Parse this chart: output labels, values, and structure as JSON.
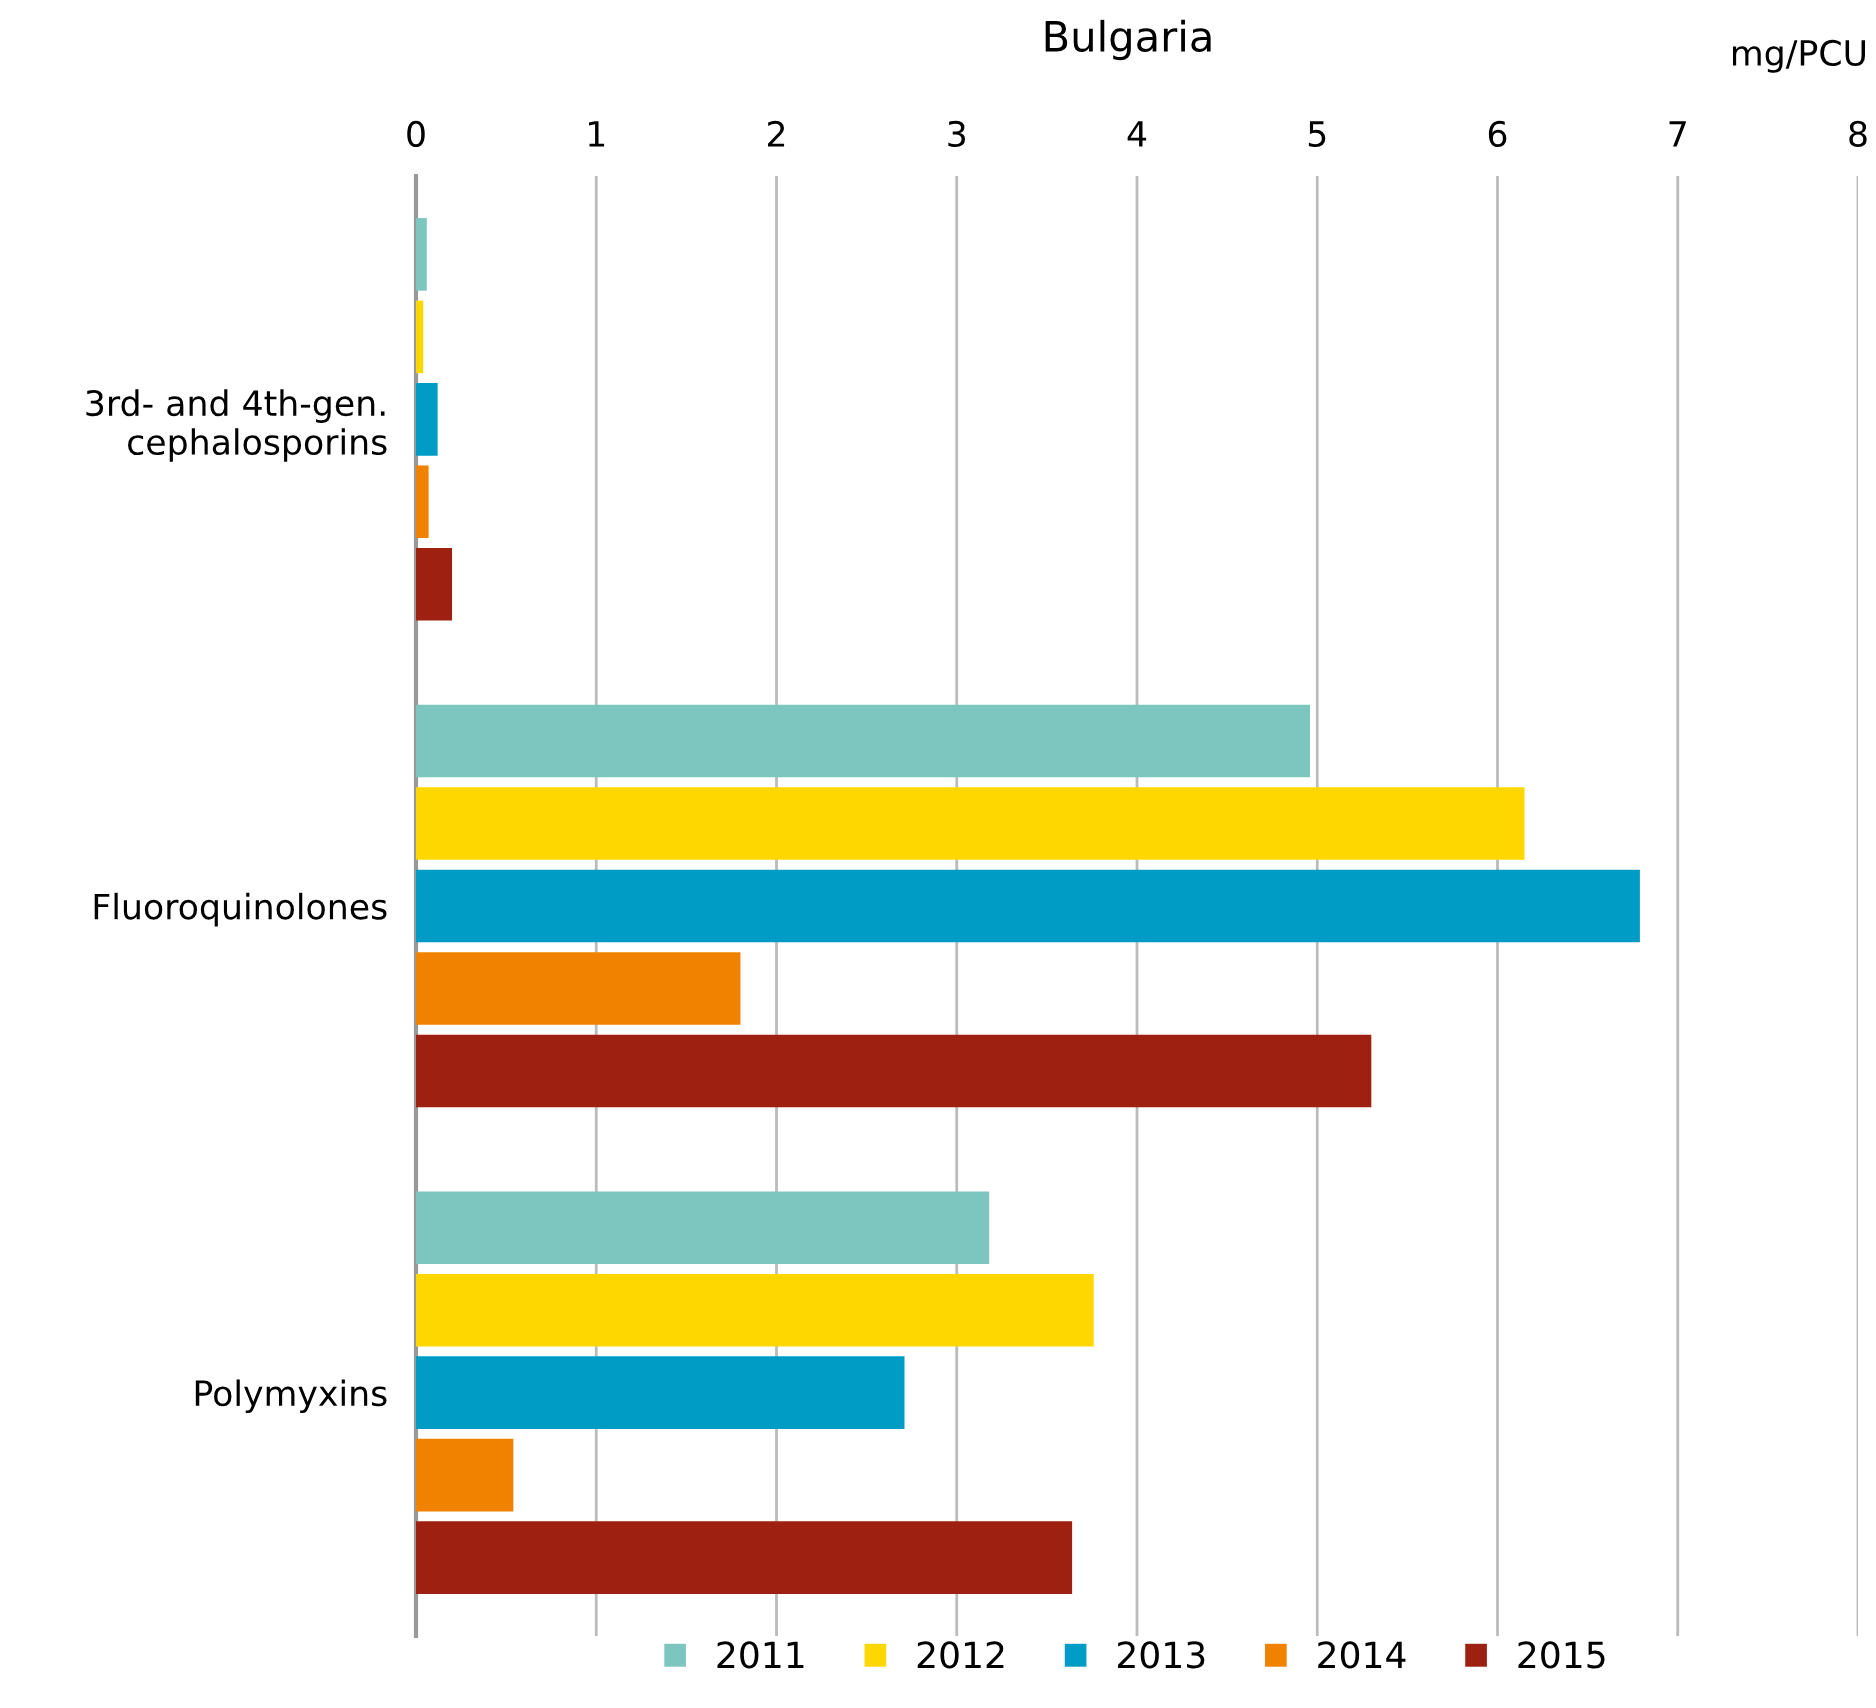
{
  "chart_data": {
    "type": "bar",
    "orientation": "horizontal",
    "title": "Bulgaria",
    "xlabel": "mg/PCU",
    "categories": [
      "3rd- and 4th-gen.\ncephalosporins",
      "Fluoroquinolones",
      "Polymyxins"
    ],
    "series": [
      {
        "name": "2011",
        "color": "#7dc6bf",
        "values": [
          0.06,
          4.96,
          3.18
        ]
      },
      {
        "name": "2012",
        "color": "#ffd700",
        "values": [
          0.04,
          6.15,
          3.76
        ]
      },
      {
        "name": "2013",
        "color": "#009cc6",
        "values": [
          0.12,
          6.79,
          2.71
        ]
      },
      {
        "name": "2014",
        "color": "#f08200",
        "values": [
          0.07,
          1.8,
          0.54
        ]
      },
      {
        "name": "2015",
        "color": "#9e2010",
        "values": [
          0.2,
          5.3,
          3.64
        ]
      }
    ],
    "xlim": [
      0,
      8
    ],
    "xticks": [
      0,
      1,
      2,
      3,
      4,
      5,
      6,
      7,
      8
    ],
    "grid": "x",
    "legend": "bottom"
  }
}
